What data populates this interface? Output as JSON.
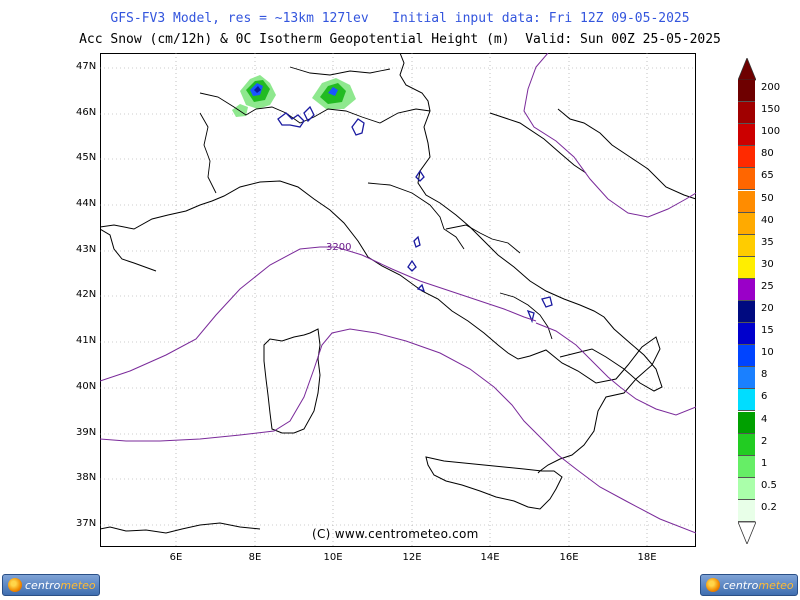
{
  "header": {
    "line1": "GFS-FV3 Model, res = ~13km 127lev   Initial input data: Fri 12Z 09-05-2025",
    "line2": "Acc Snow (cm/12h) & 0C Isotherm Geopotential Height (m)  Valid: Sun 00Z 25-05-2025"
  },
  "map": {
    "lat_labels": [
      "47N",
      "46N",
      "45N",
      "44N",
      "43N",
      "42N",
      "41N",
      "40N",
      "39N",
      "38N",
      "37N"
    ],
    "lon_labels": [
      "6E",
      "8E",
      "10E",
      "12E",
      "14E",
      "16E",
      "18E"
    ],
    "isotherm_label": "3200",
    "copyright": "(C) www.centrometeo.com",
    "coastline_color": "#000000",
    "isotherm_color": "#7a2a9a",
    "snow_colors": {
      "light": "#8ee88e",
      "medium": "#22bb22",
      "heavy": "#1a55ff",
      "core": "#0a1aa0"
    }
  },
  "legend": {
    "unit": "cm/12h",
    "classes": [
      {
        "label": "200",
        "color": "#6e0000"
      },
      {
        "label": "150",
        "color": "#a00000"
      },
      {
        "label": "100",
        "color": "#cc0000"
      },
      {
        "label": "80",
        "color": "#ff2a00"
      },
      {
        "label": "65",
        "color": "#ff6600"
      },
      {
        "label": "50",
        "color": "#ff8c00"
      },
      {
        "label": "40",
        "color": "#ffaa00"
      },
      {
        "label": "35",
        "color": "#ffcc00"
      },
      {
        "label": "30",
        "color": "#ffee00"
      },
      {
        "label": "25",
        "color": "#9a00c8"
      },
      {
        "label": "20",
        "color": "#000a80"
      },
      {
        "label": "15",
        "color": "#0000cc"
      },
      {
        "label": "10",
        "color": "#0044ff"
      },
      {
        "label": "8",
        "color": "#1a80ff"
      },
      {
        "label": "6",
        "color": "#00ddff"
      },
      {
        "label": "4",
        "color": "#00a000"
      },
      {
        "label": "2",
        "color": "#22cc22"
      },
      {
        "label": "1",
        "color": "#66ee66"
      },
      {
        "label": "0.5",
        "color": "#aaffaa"
      },
      {
        "label": "0.2",
        "color": "#e8ffe8"
      }
    ]
  },
  "logos": {
    "left": {
      "prefix": "centro",
      "suffix": "meteo"
    },
    "right": {
      "prefix": "centro",
      "suffix": "meteo"
    }
  }
}
